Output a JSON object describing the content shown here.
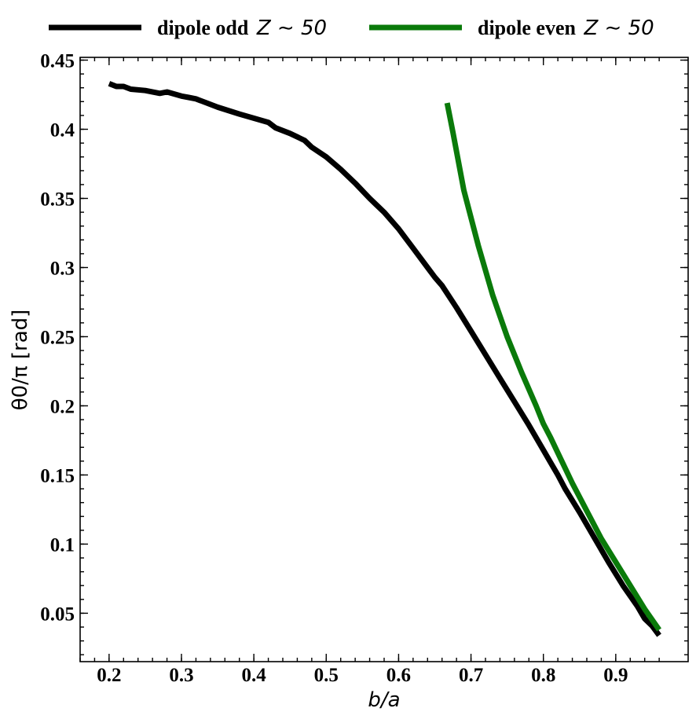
{
  "chart_data": {
    "type": "line",
    "xlabel": "b/a",
    "ylabel": "θ0/π [rad]",
    "xlim": [
      0.16,
      1.0
    ],
    "ylim": [
      0.015,
      0.452
    ],
    "x_ticks": [
      0.2,
      0.3,
      0.4,
      0.5,
      0.6,
      0.7,
      0.8,
      0.9
    ],
    "x_tick_labels": [
      "0.2",
      "0.3",
      "0.4",
      "0.5",
      "0.6",
      "0.7",
      "0.8",
      "0.9"
    ],
    "y_ticks": [
      0.05,
      0.1,
      0.15,
      0.2,
      0.25,
      0.3,
      0.35,
      0.4,
      0.45
    ],
    "y_tick_labels": [
      "0.05",
      "0.1",
      "0.15",
      "0.2",
      "0.25",
      "0.3",
      "0.35",
      "0.4",
      "0.45"
    ],
    "legend_position": "top, outside plot",
    "grid": false,
    "series": [
      {
        "name": "dipole odd",
        "name_math": "Z ∼ 50",
        "color": "#000000",
        "x": [
          0.2,
          0.21,
          0.22,
          0.23,
          0.25,
          0.27,
          0.28,
          0.3,
          0.31,
          0.32,
          0.35,
          0.38,
          0.42,
          0.43,
          0.45,
          0.47,
          0.48,
          0.5,
          0.52,
          0.54,
          0.56,
          0.57,
          0.58,
          0.6,
          0.62,
          0.64,
          0.65,
          0.66,
          0.68,
          0.7,
          0.72,
          0.74,
          0.76,
          0.78,
          0.8,
          0.81,
          0.82,
          0.83,
          0.85,
          0.87,
          0.89,
          0.91,
          0.93,
          0.94,
          0.95,
          0.96
        ],
        "y": [
          0.433,
          0.431,
          0.431,
          0.429,
          0.428,
          0.426,
          0.427,
          0.424,
          0.423,
          0.422,
          0.416,
          0.411,
          0.405,
          0.401,
          0.397,
          0.392,
          0.387,
          0.38,
          0.371,
          0.361,
          0.35,
          0.345,
          0.34,
          0.328,
          0.314,
          0.3,
          0.293,
          0.287,
          0.271,
          0.254,
          0.237,
          0.22,
          0.203,
          0.186,
          0.168,
          0.159,
          0.15,
          0.14,
          0.123,
          0.105,
          0.087,
          0.07,
          0.055,
          0.046,
          0.041,
          0.034
        ]
      },
      {
        "name": "dipole even",
        "name_math": "Z ∼ 50",
        "color": "#0a7a0a",
        "x": [
          0.667,
          0.675,
          0.69,
          0.71,
          0.73,
          0.75,
          0.77,
          0.79,
          0.8,
          0.81,
          0.82,
          0.84,
          0.86,
          0.88,
          0.9,
          0.92,
          0.94,
          0.96
        ],
        "y": [
          0.419,
          0.398,
          0.356,
          0.316,
          0.28,
          0.25,
          0.224,
          0.2,
          0.187,
          0.177,
          0.166,
          0.144,
          0.124,
          0.104,
          0.087,
          0.07,
          0.053,
          0.038
        ]
      }
    ]
  }
}
